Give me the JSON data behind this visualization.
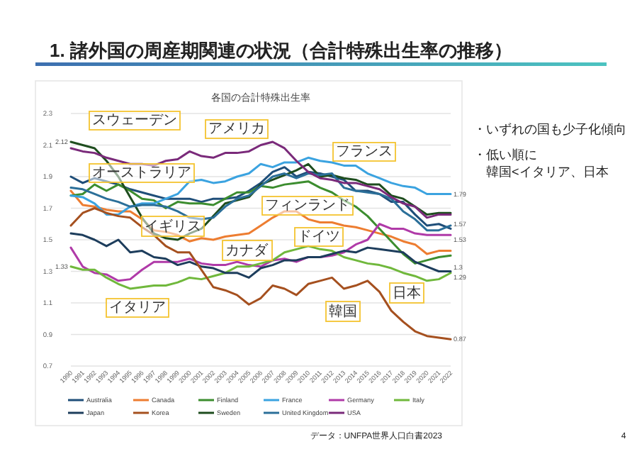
{
  "chart_data": {
    "type": "line",
    "title": "1. 諸外国の周産期関連の状況（合計特殊出生率の推移）",
    "subtitle": "各国の合計特殊出生率",
    "x": [
      1990,
      1991,
      1992,
      1993,
      1994,
      1995,
      1996,
      1997,
      1998,
      1999,
      2000,
      2001,
      2002,
      2003,
      2004,
      2005,
      2006,
      2007,
      2008,
      2009,
      2010,
      2011,
      2012,
      2013,
      2014,
      2015,
      2016,
      2017,
      2018,
      2019,
      2020,
      2021,
      2022
    ],
    "xlim": [
      1990,
      2022
    ],
    "xticks": [
      1990,
      1991,
      1992,
      1993,
      1994,
      1995,
      1996,
      1997,
      1998,
      1999,
      2000,
      2001,
      2002,
      2003,
      2004,
      2005,
      2006,
      2007,
      2008,
      2009,
      2010,
      2011,
      2012,
      2013,
      2014,
      2015,
      2016,
      2017,
      2018,
      2019,
      2020,
      2021,
      2022
    ],
    "ylim": [
      0.7,
      2.3
    ],
    "yticks": [
      0.7,
      0.9,
      1.1,
      1.3,
      1.5,
      1.7,
      1.9,
      2.1,
      2.3
    ],
    "grid": "y",
    "legend": "bottom",
    "marker": "none",
    "line_style": "solid",
    "series": [
      {
        "name": "Australia",
        "color": "#1f4e79",
        "values": [
          1.9,
          1.86,
          1.89,
          1.87,
          1.85,
          1.82,
          1.8,
          1.78,
          1.76,
          1.76,
          1.76,
          1.74,
          1.76,
          1.76,
          1.77,
          1.81,
          1.86,
          1.93,
          1.96,
          1.9,
          1.93,
          1.92,
          1.9,
          1.88,
          1.81,
          1.81,
          1.79,
          1.74,
          1.74,
          1.66,
          1.59,
          1.6,
          1.57
        ],
        "value_labels": [
          null,
          null,
          null,
          null,
          null,
          null,
          null,
          null,
          null,
          null,
          null,
          null,
          null,
          null,
          null,
          null,
          null,
          null,
          null,
          null,
          null,
          null,
          null,
          null,
          null,
          null,
          null,
          null,
          null,
          null,
          null,
          null,
          "1.57"
        ]
      },
      {
        "name": "Canada",
        "color": "#ed7d31",
        "values": [
          1.81,
          1.72,
          1.71,
          1.69,
          1.68,
          1.68,
          1.63,
          1.56,
          1.55,
          1.53,
          1.49,
          1.51,
          1.5,
          1.52,
          1.53,
          1.54,
          1.59,
          1.64,
          1.68,
          1.68,
          1.63,
          1.61,
          1.61,
          1.59,
          1.58,
          1.56,
          1.54,
          1.52,
          1.49,
          1.47,
          1.41,
          1.43,
          1.43
        ]
      },
      {
        "name": "Finland",
        "color": "#3c8d2f",
        "values": [
          1.78,
          1.79,
          1.85,
          1.81,
          1.85,
          1.81,
          1.76,
          1.75,
          1.7,
          1.74,
          1.73,
          1.73,
          1.72,
          1.76,
          1.8,
          1.8,
          1.84,
          1.83,
          1.85,
          1.86,
          1.87,
          1.83,
          1.8,
          1.75,
          1.71,
          1.65,
          1.57,
          1.49,
          1.41,
          1.35,
          1.37,
          1.39,
          1.4
        ]
      },
      {
        "name": "France",
        "color": "#3ba3e0",
        "values": [
          1.78,
          1.77,
          1.73,
          1.66,
          1.66,
          1.71,
          1.73,
          1.73,
          1.76,
          1.79,
          1.87,
          1.88,
          1.86,
          1.87,
          1.9,
          1.92,
          1.98,
          1.96,
          1.99,
          1.99,
          2.02,
          2.0,
          1.99,
          1.97,
          1.97,
          1.92,
          1.89,
          1.86,
          1.84,
          1.83,
          1.79,
          1.79,
          1.79
        ],
        "value_labels": [
          null,
          null,
          null,
          null,
          null,
          null,
          null,
          null,
          null,
          null,
          null,
          null,
          null,
          null,
          null,
          null,
          null,
          null,
          null,
          null,
          null,
          null,
          null,
          null,
          null,
          null,
          null,
          null,
          null,
          null,
          null,
          null,
          "1.79"
        ]
      },
      {
        "name": "Germany",
        "color": "#b03aa8",
        "values": [
          1.45,
          1.33,
          1.29,
          1.28,
          1.24,
          1.25,
          1.31,
          1.36,
          1.36,
          1.36,
          1.38,
          1.35,
          1.34,
          1.34,
          1.36,
          1.34,
          1.33,
          1.37,
          1.38,
          1.36,
          1.39,
          1.39,
          1.4,
          1.42,
          1.47,
          1.5,
          1.6,
          1.57,
          1.57,
          1.54,
          1.53,
          1.53,
          1.53
        ],
        "value_labels": [
          null,
          null,
          null,
          null,
          null,
          null,
          null,
          null,
          null,
          null,
          null,
          null,
          null,
          null,
          null,
          null,
          null,
          null,
          null,
          null,
          null,
          null,
          null,
          null,
          null,
          null,
          null,
          null,
          null,
          null,
          null,
          null,
          "1.53"
        ]
      },
      {
        "name": "Italy",
        "color": "#70b83c",
        "values": [
          1.33,
          1.31,
          1.31,
          1.26,
          1.22,
          1.19,
          1.2,
          1.21,
          1.21,
          1.23,
          1.26,
          1.25,
          1.27,
          1.29,
          1.33,
          1.33,
          1.35,
          1.37,
          1.42,
          1.44,
          1.46,
          1.44,
          1.43,
          1.39,
          1.37,
          1.35,
          1.34,
          1.32,
          1.29,
          1.27,
          1.24,
          1.25,
          1.29
        ],
        "value_labels": [
          "1.33",
          null,
          null,
          null,
          null,
          null,
          null,
          null,
          null,
          null,
          null,
          null,
          null,
          null,
          null,
          null,
          null,
          null,
          null,
          null,
          null,
          null,
          null,
          null,
          null,
          null,
          null,
          null,
          null,
          null,
          null,
          null,
          "1.29"
        ]
      },
      {
        "name": "Japan",
        "color": "#1d3d5c",
        "values": [
          1.54,
          1.53,
          1.5,
          1.46,
          1.5,
          1.42,
          1.43,
          1.39,
          1.38,
          1.34,
          1.36,
          1.33,
          1.32,
          1.29,
          1.29,
          1.26,
          1.32,
          1.34,
          1.37,
          1.37,
          1.39,
          1.39,
          1.41,
          1.43,
          1.42,
          1.45,
          1.44,
          1.43,
          1.42,
          1.36,
          1.33,
          1.3,
          1.3
        ],
        "value_labels": [
          null,
          null,
          null,
          null,
          null,
          null,
          null,
          null,
          null,
          null,
          null,
          null,
          null,
          null,
          null,
          null,
          null,
          null,
          null,
          null,
          null,
          null,
          null,
          null,
          null,
          null,
          null,
          null,
          null,
          null,
          null,
          null,
          "1.3"
        ]
      },
      {
        "name": "Korea",
        "color": "#a5501f",
        "values": [
          1.59,
          1.67,
          1.7,
          1.67,
          1.65,
          1.64,
          1.58,
          1.53,
          1.46,
          1.42,
          1.42,
          1.31,
          1.2,
          1.18,
          1.15,
          1.09,
          1.13,
          1.21,
          1.19,
          1.15,
          1.22,
          1.24,
          1.26,
          1.19,
          1.21,
          1.24,
          1.17,
          1.05,
          0.98,
          0.92,
          0.89,
          0.88,
          0.87
        ],
        "value_labels": [
          null,
          null,
          null,
          null,
          null,
          null,
          null,
          null,
          null,
          null,
          null,
          null,
          null,
          null,
          null,
          null,
          null,
          null,
          null,
          null,
          null,
          null,
          null,
          null,
          null,
          null,
          null,
          null,
          null,
          null,
          null,
          null,
          "0.87"
        ]
      },
      {
        "name": "Sweden",
        "color": "#1e4d1e",
        "values": [
          2.12,
          2.1,
          2.08,
          2.0,
          1.9,
          1.77,
          1.64,
          1.54,
          1.51,
          1.5,
          1.54,
          1.57,
          1.65,
          1.73,
          1.75,
          1.77,
          1.85,
          1.88,
          1.91,
          1.94,
          1.98,
          1.9,
          1.91,
          1.89,
          1.88,
          1.85,
          1.85,
          1.78,
          1.76,
          1.71,
          1.66,
          1.67,
          1.67
        ],
        "value_labels": [
          "2.12",
          null,
          null,
          null,
          null,
          null,
          null,
          null,
          null,
          null,
          null,
          null,
          null,
          null,
          null,
          null,
          null,
          null,
          null,
          null,
          null,
          null,
          null,
          null,
          null,
          null,
          null,
          null,
          null,
          null,
          null,
          null,
          null
        ]
      },
      {
        "name": "United Kingdom",
        "color": "#2b6f99",
        "values": [
          1.83,
          1.82,
          1.79,
          1.76,
          1.74,
          1.71,
          1.72,
          1.72,
          1.71,
          1.68,
          1.64,
          1.63,
          1.64,
          1.71,
          1.76,
          1.78,
          1.84,
          1.9,
          1.92,
          1.89,
          1.92,
          1.91,
          1.92,
          1.83,
          1.81,
          1.8,
          1.79,
          1.76,
          1.68,
          1.63,
          1.56,
          1.56,
          1.59
        ]
      },
      {
        "name": "USA",
        "color": "#7a2a7a",
        "values": [
          2.08,
          2.06,
          2.05,
          2.02,
          2.0,
          1.98,
          1.98,
          1.97,
          2.0,
          2.01,
          2.06,
          2.03,
          2.02,
          2.05,
          2.05,
          2.06,
          2.1,
          2.12,
          2.08,
          2.0,
          1.93,
          1.89,
          1.88,
          1.86,
          1.86,
          1.84,
          1.82,
          1.77,
          1.73,
          1.71,
          1.64,
          1.66,
          1.66
        ]
      }
    ],
    "annotations": [
      "スウェーデン",
      "アメリカ",
      "オーストラリア",
      "フランス",
      "イギリス",
      "フィンランド",
      "カナダ",
      "ドイツ",
      "イタリア",
      "韓国",
      "日本",
      "・いずれの国も少子化傾向",
      "・低い順に",
      "韓国<イタリア、日本",
      "データ：UNFPA世界人口白書2023",
      "4"
    ]
  }
}
